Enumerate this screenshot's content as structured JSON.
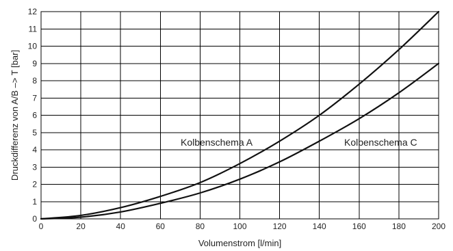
{
  "chart_data": {
    "type": "line",
    "xlabel": "Volumenstrom [l/min]",
    "ylabel": "Druckdifferenz von A/B –> T [bar]",
    "xlim": [
      0,
      200
    ],
    "ylim": [
      0,
      12
    ],
    "xticks": [
      "0",
      "20",
      "40",
      "60",
      "80",
      "100",
      "120",
      "140",
      "160",
      "180",
      "200"
    ],
    "yticks": [
      "0",
      "1",
      "2",
      "3",
      "4",
      "5",
      "6",
      "7",
      "8",
      "9",
      "10",
      "11",
      "12"
    ],
    "grid": true,
    "series": [
      {
        "name": "Kolbenschema A",
        "x": [
          0,
          20,
          40,
          60,
          80,
          100,
          120,
          140,
          160,
          180,
          200
        ],
        "y": [
          0,
          0.2,
          0.65,
          1.3,
          2.1,
          3.2,
          4.5,
          6.0,
          7.8,
          9.8,
          12.0
        ]
      },
      {
        "name": "Kolbenschema C",
        "x": [
          0,
          20,
          40,
          60,
          80,
          100,
          120,
          140,
          160,
          180,
          200
        ],
        "y": [
          0,
          0.1,
          0.4,
          0.9,
          1.5,
          2.3,
          3.3,
          4.5,
          5.8,
          7.3,
          9.0
        ]
      }
    ],
    "annotations": [
      {
        "text": "Kolbenschema A",
        "series": "Kolbenschema A"
      },
      {
        "text": "Kolbenschema C",
        "series": "Kolbenschema C"
      }
    ]
  }
}
